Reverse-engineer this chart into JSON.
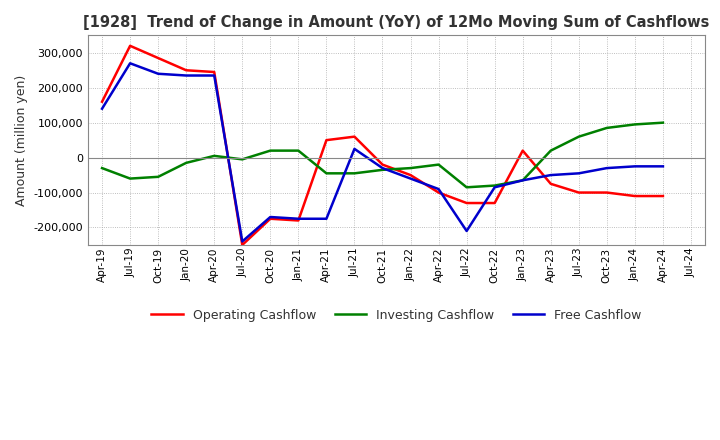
{
  "title": "[1928]  Trend of Change in Amount (YoY) of 12Mo Moving Sum of Cashflows",
  "ylabel": "Amount (million yen)",
  "ylim": [
    -250000,
    350000
  ],
  "yticks": [
    -200000,
    -100000,
    0,
    100000,
    200000,
    300000
  ],
  "x_labels": [
    "Apr-19",
    "Jul-19",
    "Oct-19",
    "Jan-20",
    "Apr-20",
    "Jul-20",
    "Oct-20",
    "Jan-21",
    "Apr-21",
    "Jul-21",
    "Oct-21",
    "Jan-22",
    "Apr-22",
    "Jul-22",
    "Oct-22",
    "Jan-23",
    "Apr-23",
    "Jul-23",
    "Oct-23",
    "Jan-24",
    "Apr-24",
    "Jul-24"
  ],
  "operating": [
    160000,
    320000,
    285000,
    250000,
    245000,
    -250000,
    -175000,
    -180000,
    50000,
    60000,
    -20000,
    -50000,
    -100000,
    -130000,
    -130000,
    20000,
    -75000,
    -100000,
    -100000,
    -110000,
    -110000,
    null
  ],
  "investing": [
    -30000,
    -60000,
    -55000,
    -15000,
    5000,
    -5000,
    20000,
    20000,
    -45000,
    -45000,
    -35000,
    -30000,
    -20000,
    -85000,
    -80000,
    -65000,
    20000,
    60000,
    85000,
    95000,
    100000,
    null
  ],
  "free": [
    140000,
    270000,
    240000,
    235000,
    235000,
    -240000,
    -170000,
    -175000,
    -175000,
    25000,
    -30000,
    -60000,
    -90000,
    -210000,
    -85000,
    -65000,
    -50000,
    -45000,
    -30000,
    -25000,
    -25000,
    null
  ],
  "operating_color": "#ff0000",
  "investing_color": "#008000",
  "free_color": "#0000cc",
  "bg_color": "#ffffff",
  "grid_color": "#aaaaaa",
  "title_color": "#333333",
  "spine_color": "#888888"
}
